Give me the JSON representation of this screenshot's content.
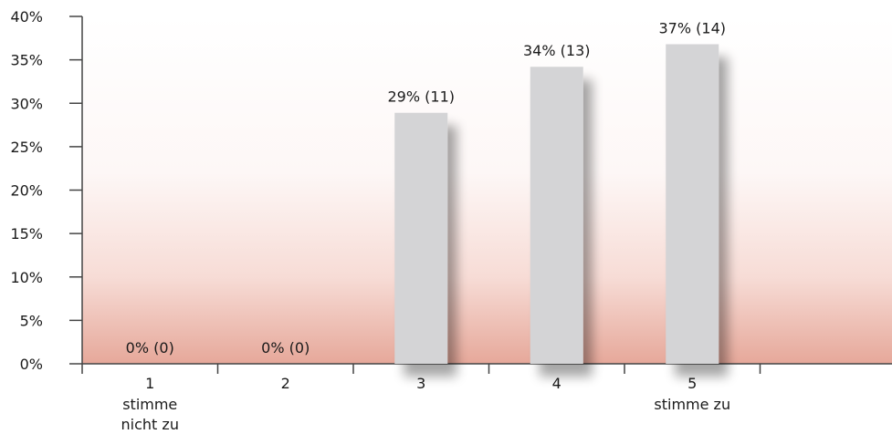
{
  "chart_data": {
    "type": "bar",
    "categories": [
      "1",
      "2",
      "3",
      "4",
      "5"
    ],
    "category_sublabels": [
      "stimme nicht zu",
      "",
      "",
      "",
      "stimme zu"
    ],
    "values": [
      0,
      0,
      28.9,
      34.2,
      36.8
    ],
    "counts": [
      0,
      0,
      11,
      13,
      14
    ],
    "data_labels": [
      "0% (0)",
      "0% (0)",
      "29% (11)",
      "34% (13)",
      "37% (14)"
    ],
    "ylim": [
      0,
      40
    ],
    "yticks": [
      "0%",
      "5%",
      "10%",
      "15%",
      "20%",
      "25%",
      "30%",
      "35%",
      "40%"
    ],
    "grid": false,
    "colors": {
      "bar": "#d4d4d6",
      "background_gradient_bottom": "#e6a89a",
      "axis": "#444444"
    }
  }
}
